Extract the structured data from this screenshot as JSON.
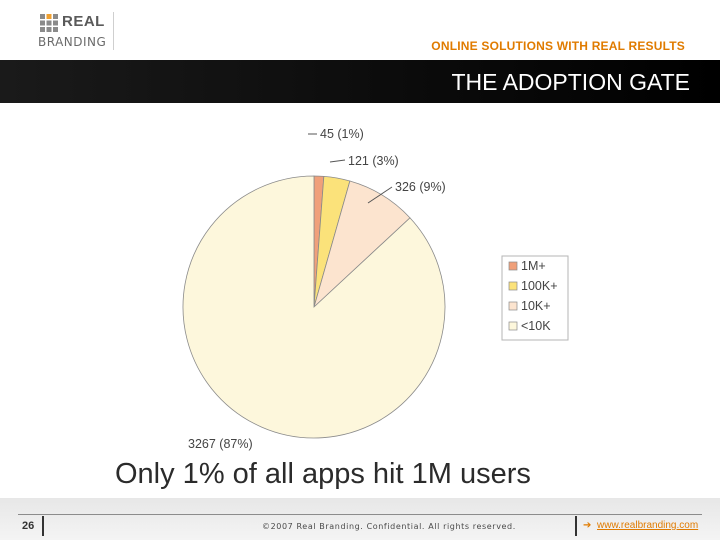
{
  "header": {
    "logo_top": "REAL",
    "logo_bottom": "BRANDING",
    "tagline": "ONLINE SOLUTIONS WITH REAL RESULTS"
  },
  "slide": {
    "title": "THE ADOPTION GATE",
    "caption": "Only 1% of all apps hit 1M users"
  },
  "footer": {
    "page_number": "26",
    "copyright": "©2007 Real Branding. Confidential. All rights reserved.",
    "url": "www.realbranding.com"
  },
  "colors": {
    "accent": "#e07b00",
    "title_bar": "#000000",
    "stroke": "#8a8a8a"
  },
  "chart_data": {
    "type": "pie",
    "categories": [
      "1M+",
      "100K+",
      "10K+",
      "<10K"
    ],
    "values": [
      45,
      121,
      326,
      3267
    ],
    "data_labels": [
      "45 (1%)",
      "121 (3%)",
      "326 (9%)",
      "3267 (87%)"
    ],
    "colors": [
      "#f0a07a",
      "#fbe27a",
      "#fce4cf",
      "#fdf7dc"
    ],
    "legend": {
      "position": "right",
      "labels": [
        "1M+",
        "100K+",
        "10K+",
        "<10K"
      ]
    },
    "title": ""
  }
}
